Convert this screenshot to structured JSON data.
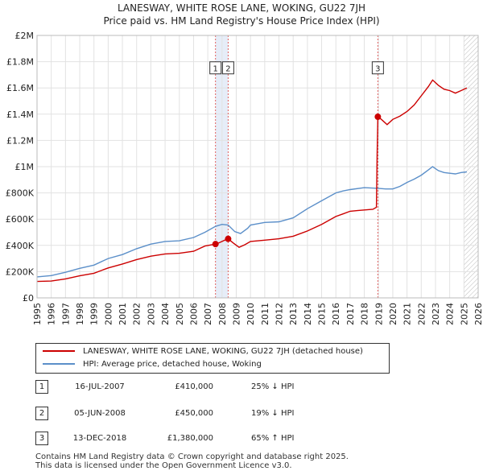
{
  "title": {
    "line1": "LANESWAY, WHITE ROSE LANE, WOKING, GU22 7JH",
    "line2": "Price paid vs. HM Land Registry's House Price Index (HPI)"
  },
  "chart_data": {
    "type": "line",
    "x_range": [
      1995,
      2026
    ],
    "ylim": [
      0,
      2000000
    ],
    "y_ticks": [
      {
        "value": 0,
        "label": "£0"
      },
      {
        "value": 200000,
        "label": "£200K"
      },
      {
        "value": 400000,
        "label": "£400K"
      },
      {
        "value": 600000,
        "label": "£600K"
      },
      {
        "value": 800000,
        "label": "£800K"
      },
      {
        "value": 1000000,
        "label": "£1M"
      },
      {
        "value": 1200000,
        "label": "£1.2M"
      },
      {
        "value": 1400000,
        "label": "£1.4M"
      },
      {
        "value": 1600000,
        "label": "£1.6M"
      },
      {
        "value": 1800000,
        "label": "£1.8M"
      },
      {
        "value": 2000000,
        "label": "£2M"
      }
    ],
    "x_ticks": [
      "1995",
      "1996",
      "1997",
      "1998",
      "1999",
      "2000",
      "2001",
      "2002",
      "2003",
      "2004",
      "2005",
      "2006",
      "2007",
      "2008",
      "2009",
      "2010",
      "2011",
      "2012",
      "2013",
      "2014",
      "2015",
      "2016",
      "2017",
      "2018",
      "2019",
      "2020",
      "2021",
      "2022",
      "2023",
      "2024",
      "2025",
      "2026"
    ],
    "grid": true,
    "future_hatch_from": 2025.0,
    "series": [
      {
        "name": "LANESWAY, WHITE ROSE LANE, WOKING, GU22 7JH (detached house)",
        "color": "#cc0000",
        "points": [
          [
            1995.0,
            125000
          ],
          [
            1996.0,
            128000
          ],
          [
            1997.0,
            145000
          ],
          [
            1998.0,
            168000
          ],
          [
            1999.0,
            188000
          ],
          [
            2000.0,
            228000
          ],
          [
            2001.0,
            258000
          ],
          [
            2002.0,
            292000
          ],
          [
            2003.0,
            318000
          ],
          [
            2004.0,
            335000
          ],
          [
            2005.0,
            340000
          ],
          [
            2006.0,
            355000
          ],
          [
            2006.8,
            395000
          ],
          [
            2007.54,
            410000
          ],
          [
            2007.8,
            420000
          ],
          [
            2008.2,
            440000
          ],
          [
            2008.43,
            450000
          ],
          [
            2008.8,
            418000
          ],
          [
            2009.2,
            385000
          ],
          [
            2009.6,
            405000
          ],
          [
            2010.0,
            430000
          ],
          [
            2011.0,
            440000
          ],
          [
            2012.0,
            450000
          ],
          [
            2013.0,
            470000
          ],
          [
            2014.0,
            510000
          ],
          [
            2015.0,
            560000
          ],
          [
            2016.0,
            620000
          ],
          [
            2016.5,
            640000
          ],
          [
            2017.0,
            660000
          ],
          [
            2017.5,
            665000
          ],
          [
            2018.0,
            670000
          ],
          [
            2018.6,
            675000
          ],
          [
            2018.85,
            690000
          ],
          [
            2018.9,
            1100000
          ],
          [
            2018.95,
            1380000
          ],
          [
            2019.2,
            1360000
          ],
          [
            2019.6,
            1320000
          ],
          [
            2020.0,
            1360000
          ],
          [
            2020.5,
            1385000
          ],
          [
            2021.0,
            1420000
          ],
          [
            2021.5,
            1470000
          ],
          [
            2022.0,
            1540000
          ],
          [
            2022.5,
            1610000
          ],
          [
            2022.8,
            1660000
          ],
          [
            2023.2,
            1620000
          ],
          [
            2023.6,
            1590000
          ],
          [
            2024.0,
            1580000
          ],
          [
            2024.4,
            1560000
          ],
          [
            2024.8,
            1580000
          ],
          [
            2025.2,
            1600000
          ]
        ]
      },
      {
        "name": "HPI: Average price, detached house, Woking",
        "color": "#5b8fc9",
        "points": [
          [
            1995.0,
            160000
          ],
          [
            1996.0,
            170000
          ],
          [
            1997.0,
            195000
          ],
          [
            1998.0,
            225000
          ],
          [
            1999.0,
            250000
          ],
          [
            2000.0,
            300000
          ],
          [
            2001.0,
            330000
          ],
          [
            2002.0,
            375000
          ],
          [
            2003.0,
            410000
          ],
          [
            2004.0,
            430000
          ],
          [
            2005.0,
            435000
          ],
          [
            2006.0,
            460000
          ],
          [
            2006.8,
            500000
          ],
          [
            2007.54,
            545000
          ],
          [
            2008.0,
            560000
          ],
          [
            2008.43,
            555000
          ],
          [
            2008.9,
            505000
          ],
          [
            2009.3,
            490000
          ],
          [
            2009.8,
            530000
          ],
          [
            2010.0,
            555000
          ],
          [
            2011.0,
            575000
          ],
          [
            2012.0,
            580000
          ],
          [
            2013.0,
            610000
          ],
          [
            2014.0,
            680000
          ],
          [
            2015.0,
            740000
          ],
          [
            2016.0,
            800000
          ],
          [
            2016.5,
            815000
          ],
          [
            2017.0,
            825000
          ],
          [
            2018.0,
            840000
          ],
          [
            2018.95,
            835000
          ],
          [
            2019.5,
            830000
          ],
          [
            2020.0,
            830000
          ],
          [
            2020.5,
            850000
          ],
          [
            2021.0,
            880000
          ],
          [
            2021.5,
            905000
          ],
          [
            2022.0,
            935000
          ],
          [
            2022.5,
            975000
          ],
          [
            2022.8,
            1000000
          ],
          [
            2023.2,
            970000
          ],
          [
            2023.6,
            955000
          ],
          [
            2024.0,
            950000
          ],
          [
            2024.4,
            945000
          ],
          [
            2024.8,
            955000
          ],
          [
            2025.2,
            960000
          ]
        ]
      }
    ],
    "sales": [
      {
        "id": "1",
        "x": 2007.54,
        "value": 410000
      },
      {
        "id": "2",
        "x": 2008.43,
        "value": 450000
      },
      {
        "id": "3",
        "x": 2018.95,
        "value": 1380000
      }
    ],
    "sale_label_value": 1750000
  },
  "legend": {
    "entries": [
      {
        "label": "LANESWAY, WHITE ROSE LANE, WOKING, GU22 7JH (detached house)",
        "color": "#cc0000"
      },
      {
        "label": "HPI: Average price, detached house, Woking",
        "color": "#5b8fc9"
      }
    ]
  },
  "transactions": [
    {
      "num": "1",
      "date": "16-JUL-2007",
      "price": "£410,000",
      "hpi": "25% ↓ HPI"
    },
    {
      "num": "2",
      "date": "05-JUN-2008",
      "price": "£450,000",
      "hpi": "19% ↓ HPI"
    },
    {
      "num": "3",
      "date": "13-DEC-2018",
      "price": "£1,380,000",
      "hpi": "65% ↑ HPI"
    }
  ],
  "footer": {
    "line1": "Contains HM Land Registry data © Crown copyright and database right 2025.",
    "line2": "This data is licensed under the Open Government Licence v3.0."
  }
}
